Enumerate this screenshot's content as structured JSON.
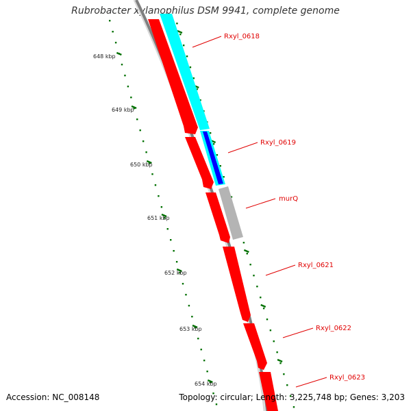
{
  "title": "Rubrobacter xylanophilus DSM 9941, complete genome",
  "accession_label": "Accession: NC_008148",
  "summary_label": "Topology: circular; Length: 3,225,748 bp; Genes: 3,203",
  "colors": {
    "backbone": "#808080",
    "cds_forward": "#ff0000",
    "cds_highlight": "#00ffff",
    "cds_blue": "#0000ff",
    "cds_gray": "#b4b4b4",
    "label": "#e00000",
    "tick": "#007000"
  },
  "ruler": {
    "ticks": [
      {
        "label": "648 kbp"
      },
      {
        "label": "649 kbp"
      },
      {
        "label": "650 kbp"
      },
      {
        "label": "651 kbp"
      },
      {
        "label": "652 kbp"
      },
      {
        "label": "653 kbp"
      },
      {
        "label": "654 kbp"
      }
    ]
  },
  "genes": [
    {
      "name": "Rxyl_0618"
    },
    {
      "name": "Rxyl_0619"
    },
    {
      "name": "murQ"
    },
    {
      "name": "Rxyl_0621"
    },
    {
      "name": "Rxyl_0622"
    },
    {
      "name": "Rxyl_0623"
    }
  ]
}
